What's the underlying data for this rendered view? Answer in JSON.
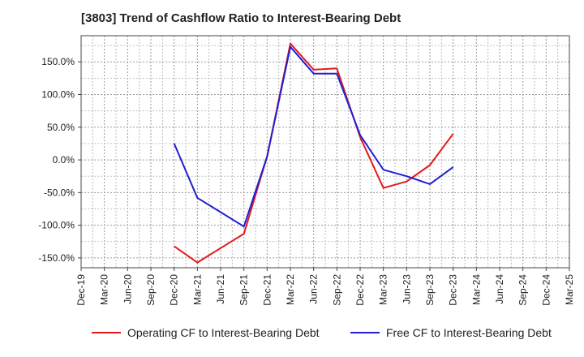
{
  "chart_data": {
    "type": "line",
    "title": "[3803]  Trend of Cashflow Ratio to Interest-Bearing Debt",
    "xlabel": "",
    "ylabel": "",
    "categories": [
      "Dec-19",
      "Mar-20",
      "Jun-20",
      "Sep-20",
      "Dec-20",
      "Mar-21",
      "Jun-21",
      "Sep-21",
      "Dec-21",
      "Mar-22",
      "Jun-22",
      "Sep-22",
      "Dec-22",
      "Mar-23",
      "Jun-23",
      "Sep-23",
      "Dec-23",
      "Mar-24",
      "Jun-24",
      "Sep-24",
      "Dec-24",
      "Mar-25"
    ],
    "yticks": [
      "150.0%",
      "100.0%",
      "50.0%",
      "0.0%",
      "-50.0%",
      "-100.0%",
      "-150.0%"
    ],
    "ylim": [
      -165,
      190
    ],
    "grid": true,
    "legend_position": "bottom",
    "series": [
      {
        "name": "Operating CF to Interest-Bearing Debt",
        "color": "#e31a1c",
        "values": [
          null,
          null,
          null,
          null,
          -132,
          -157,
          -135,
          -113,
          5,
          178,
          138,
          140,
          35,
          -43,
          -33,
          -8,
          40,
          null,
          null,
          null,
          null,
          null
        ]
      },
      {
        "name": "Free CF to Interest-Bearing Debt",
        "color": "#1f1fd6",
        "values": [
          null,
          null,
          null,
          null,
          25,
          -58,
          -80,
          -102,
          5,
          173,
          132,
          132,
          38,
          -15,
          -25,
          -37,
          -11,
          null,
          null,
          null,
          null,
          null
        ]
      }
    ]
  }
}
